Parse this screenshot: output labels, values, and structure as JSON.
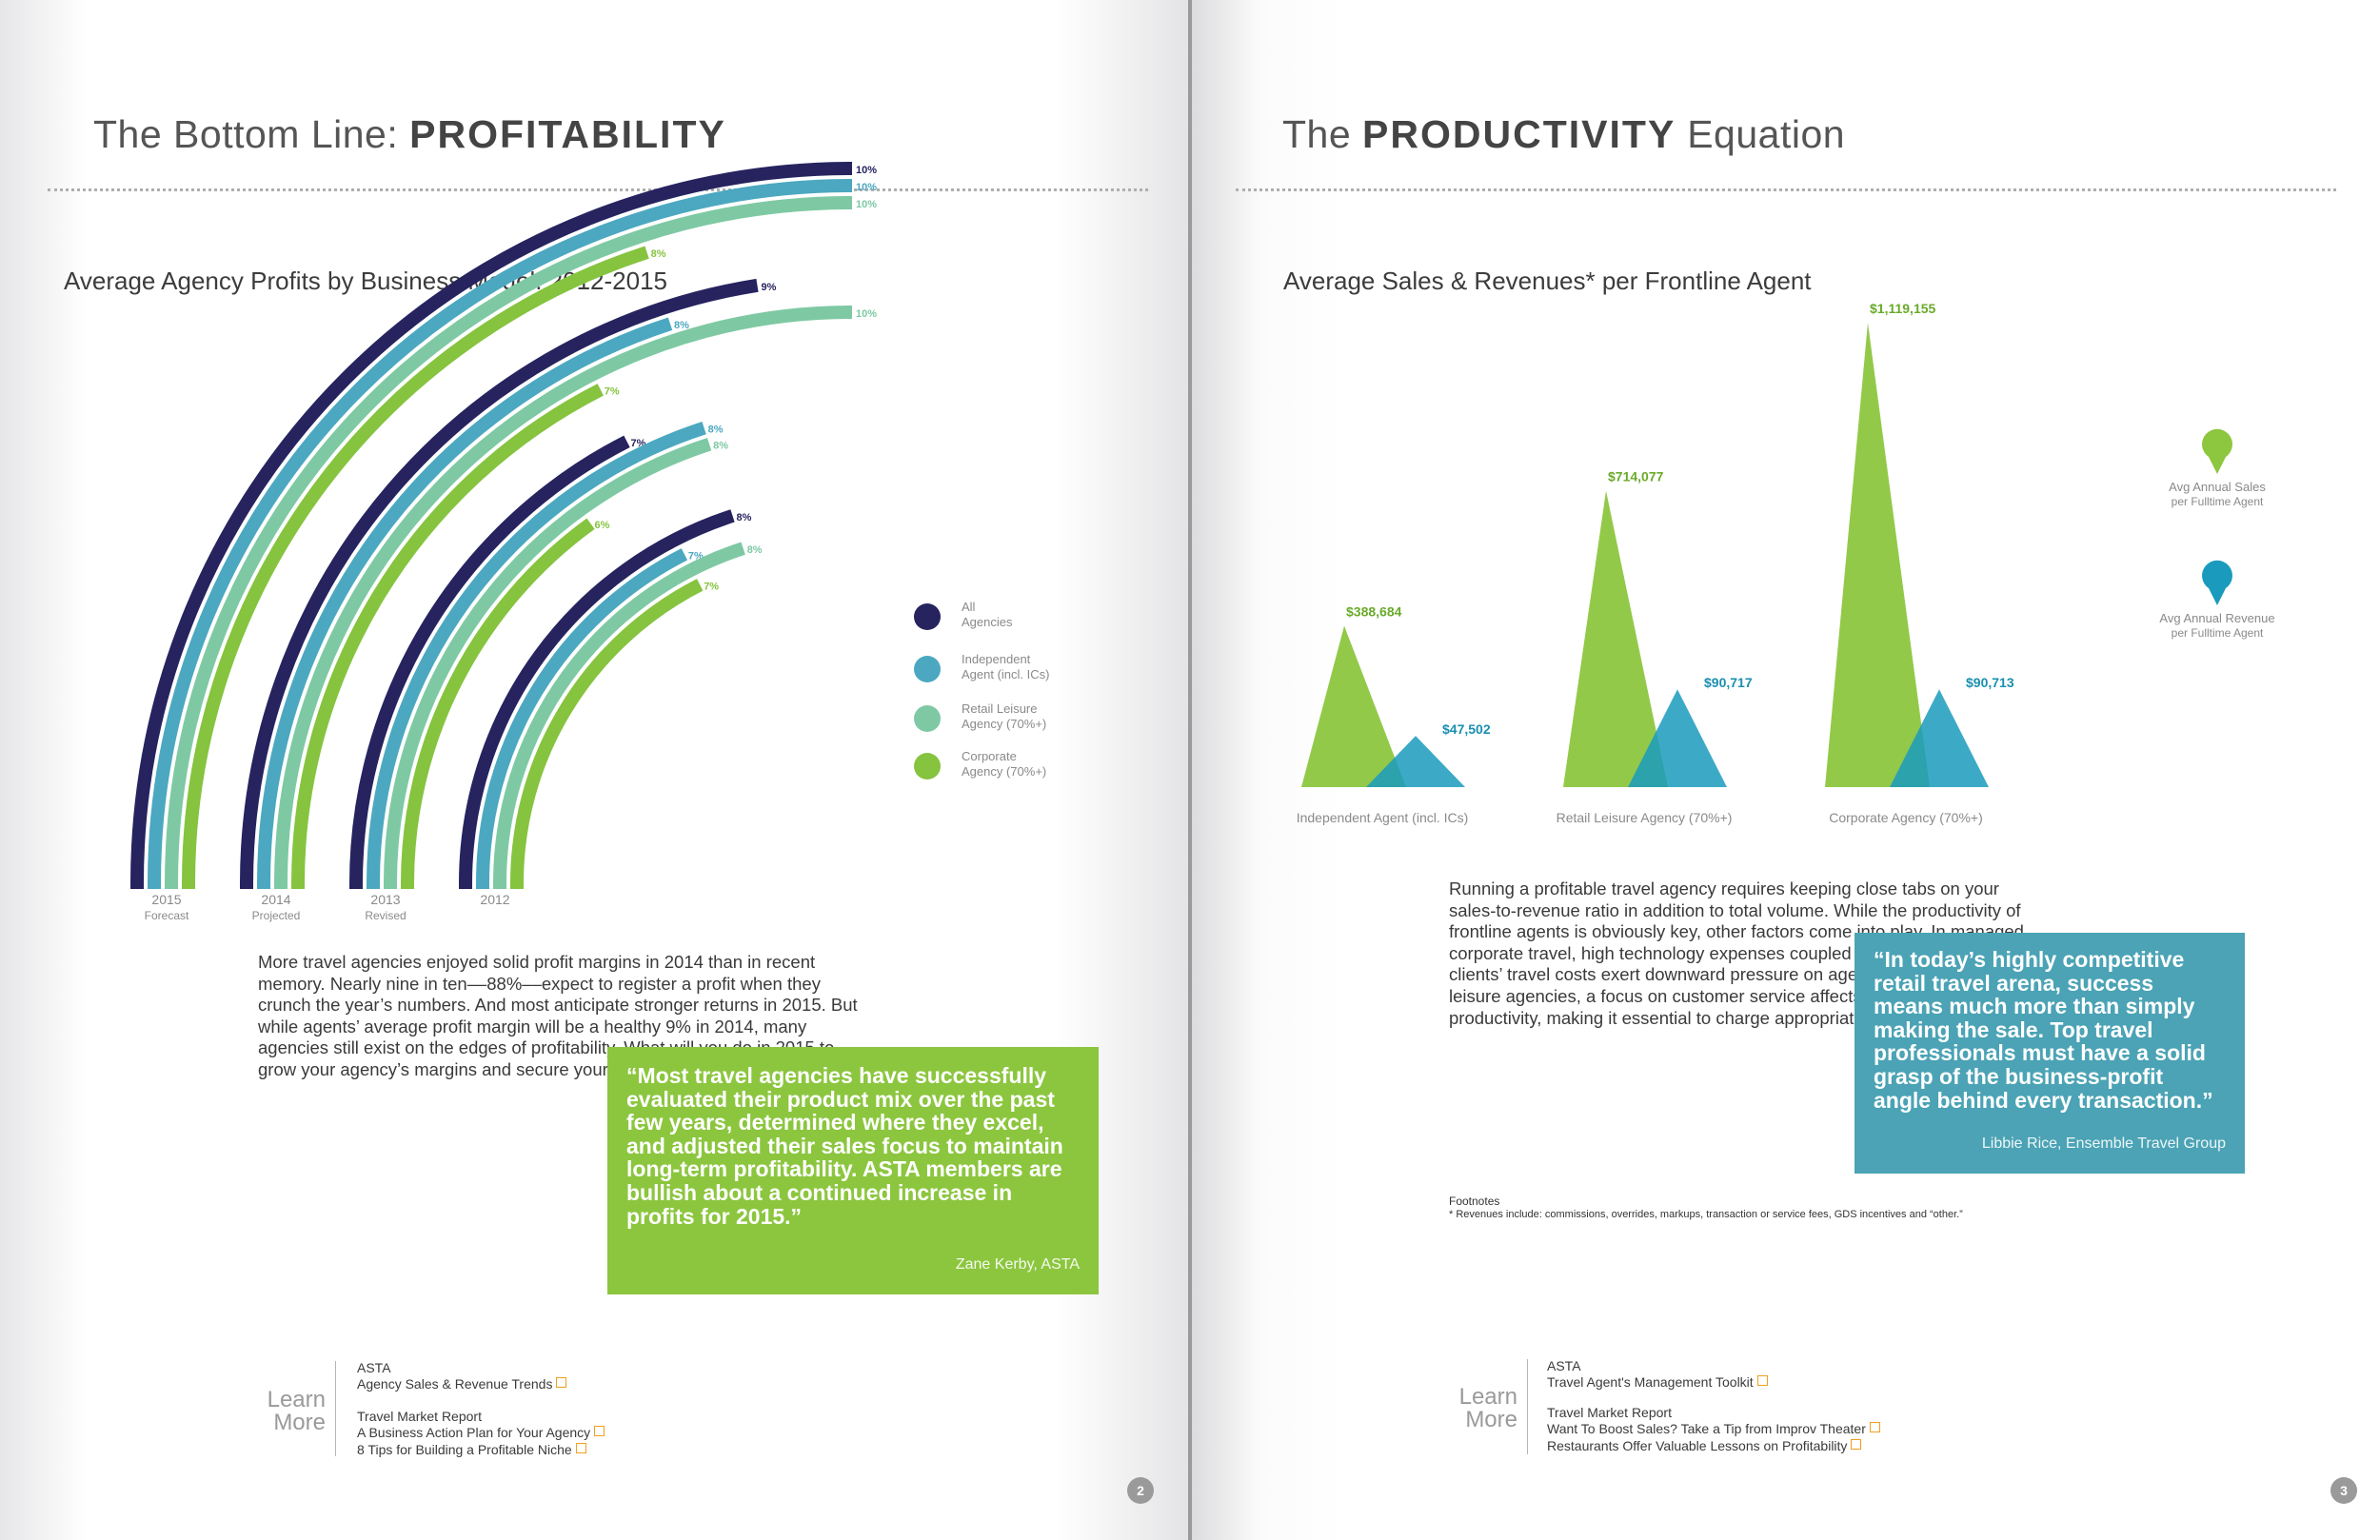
{
  "left": {
    "title_light": "The Bottom Line: ",
    "title_bold": "PROFITABILITY",
    "page_number": "2",
    "body": "More travel agencies enjoyed solid profit margins in 2014 than in recent memory. Nearly nine in ten––88%––expect to register a profit when they crunch the year’s numbers. And most anticipate stronger returns in 2015. But while agents’ average profit margin will be a healthy 9% in 2014, many agencies still exist on the edges of profitability. What will you do in 2015 to grow your agency’s margins and secure your future?",
    "quote": {
      "text": "“Most travel agencies have successfully evaluated their product mix over the past few years, determined where they excel, and adjusted their sales focus to maintain long-term profitability. ASTA members are bullish about a continued increase in profits for 2015.”",
      "attribution": "Zane Kerby, ASTA",
      "color": "#8cc63f"
    },
    "learn_more": {
      "label_1": "Learn",
      "label_2": "More",
      "groups": [
        {
          "source": "ASTA",
          "links": [
            "Agency Sales & Revenue Trends"
          ]
        },
        {
          "source": "Travel Market Report",
          "links": [
            "A Business Action Plan for Your Agency",
            "8 Tips for Building a Profitable Niche"
          ]
        }
      ]
    }
  },
  "right": {
    "title_light_1": "The ",
    "title_bold": "PRODUCTIVITY",
    "title_light_2": " Equation",
    "page_number": "3",
    "body": "Running a profitable travel agency requires keeping close tabs on your sales-to-revenue ratio in addition to total volume. While the productivity of frontline agents is obviously key, other factors come into play. In managed corporate travel, high technology expenses coupled with the need to contain clients’ travel costs exert downward pressure on agencies’ bottom lines. For leisure agencies, a focus on customer service affects agents’ sales productivity, making it essential to charge appropriate service fees.",
    "quote": {
      "text": "“In today’s highly competitive retail travel arena, success means much more than simply making the sale. Top travel professionals must have a solid grasp of the business-profit angle behind every transaction.”",
      "attribution": "Libbie Rice, Ensemble Travel Group",
      "color": "#4ba3b5"
    },
    "footnotes": {
      "heading": "Footnotes",
      "text": "* Revenues include: commissions, overrides, markups, transaction or service fees, GDS incentives and “other.”"
    },
    "learn_more": {
      "label_1": "Learn",
      "label_2": "More",
      "groups": [
        {
          "source": "ASTA",
          "links": [
            "Travel Agent's Management Toolkit"
          ]
        },
        {
          "source": "Travel Market Report",
          "links": [
            "Want To Boost Sales? Take a Tip from Improv Theater",
            "Restaurants Offer Valuable Lessons on Profitability"
          ]
        }
      ]
    }
  },
  "chart_data": [
    {
      "type": "radial-bar",
      "title": "Average Agency Profits by Business Model: 2012-2015",
      "value_unit": "%",
      "categories": [
        {
          "year": "2015",
          "sub": "Forecast"
        },
        {
          "year": "2014",
          "sub": "Projected"
        },
        {
          "year": "2013",
          "sub": "Revised"
        },
        {
          "year": "2012",
          "sub": ""
        }
      ],
      "series": [
        {
          "name": "All Agencies",
          "legend_1": "All",
          "legend_2": "Agencies",
          "color": "#26235f",
          "values": [
            10,
            9,
            7,
            8
          ]
        },
        {
          "name": "Independent Agent (incl. ICs)",
          "legend_1": "Independent",
          "legend_2": "Agent (incl. ICs)",
          "color": "#4ba8c0",
          "values": [
            10,
            8,
            8,
            7
          ]
        },
        {
          "name": "Retail Leisure Agency (70%+)",
          "legend_1": "Retail Leisure",
          "legend_2": "Agency (70%+)",
          "color": "#7ec9a3",
          "values": [
            10,
            10,
            8,
            8
          ]
        },
        {
          "name": "Corporate Agency (70%+)",
          "legend_1": "Corporate",
          "legend_2": "Agency (70%+)",
          "color": "#86c33f",
          "values": [
            8,
            7,
            6,
            7
          ]
        }
      ],
      "legend_position": "right"
    },
    {
      "type": "bar",
      "title": "Average Sales & Revenues* per Frontline Agent",
      "categories": [
        "Independent Agent (incl. ICs)",
        "Retail Leisure Agency (70%+)",
        "Corporate Agency (70%+)"
      ],
      "series": [
        {
          "name": "Avg Annual Sales per Fulltime Agent",
          "legend_1": "Avg Annual Sales",
          "legend_2": "per Fulltime Agent",
          "color": "#8dc63f",
          "values": [
            388684,
            714077,
            1119155
          ],
          "labels": [
            "$388,684",
            "$714,077",
            "$1,119,155"
          ]
        },
        {
          "name": "Avg Annual Revenue per Fulltime Agent",
          "legend_1": "Avg Annual Revenue",
          "legend_2": "per Fulltime Agent",
          "color": "#1a9bbd",
          "values": [
            47502,
            90717,
            90713
          ],
          "labels": [
            "$47,502",
            "$90,717",
            "$90,713"
          ]
        }
      ],
      "legend_position": "right"
    }
  ]
}
